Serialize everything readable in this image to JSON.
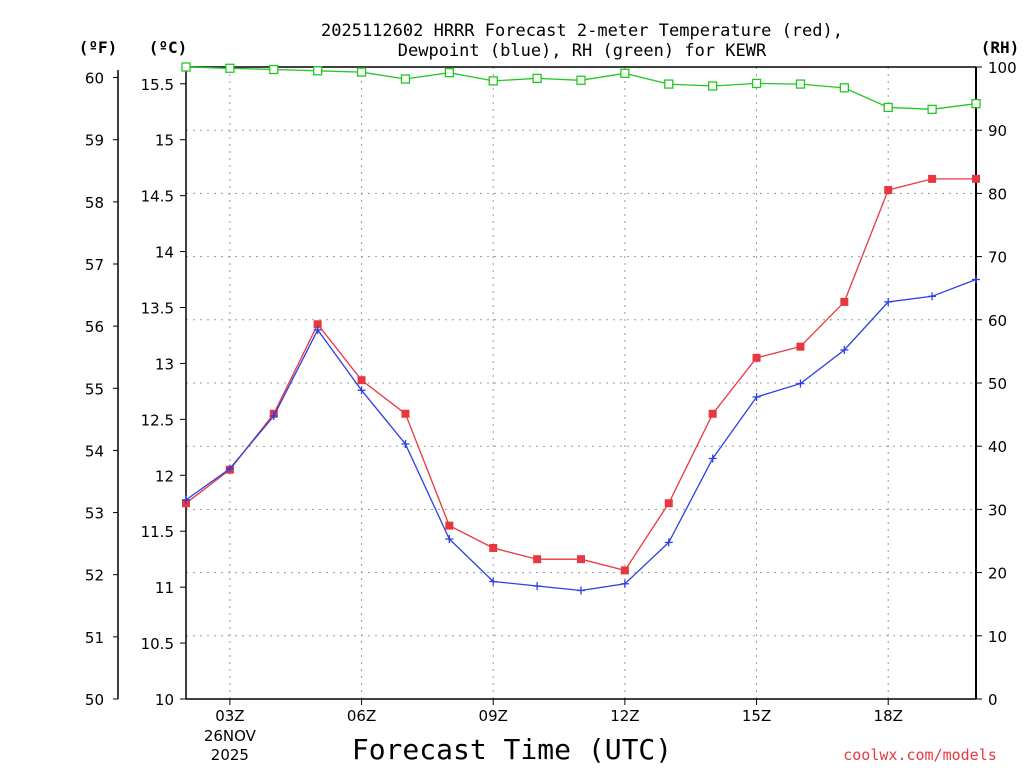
{
  "chart_data": {
    "type": "line",
    "title_line1": "2025112602 HRRR Forecast 2-meter Temperature (red),",
    "title_line2": "Dewpoint (blue), RH (green) for KEWR",
    "xlabel": "Forecast Time (UTC)",
    "credit": "coolwx.com/models",
    "left_outer_unit": "(ºF)",
    "left_inner_unit": "(ºC)",
    "right_unit": "(RH)",
    "x": [
      2,
      3,
      4,
      5,
      6,
      7,
      8,
      9,
      10,
      11,
      12,
      13,
      14,
      15,
      16,
      17,
      18,
      19,
      20
    ],
    "xlim": [
      2,
      20
    ],
    "x_ticks": [
      {
        "x": 3,
        "label": "03Z",
        "sub1": "26NOV",
        "sub2": "2025"
      },
      {
        "x": 6,
        "label": "06Z"
      },
      {
        "x": 9,
        "label": "09Z"
      },
      {
        "x": 12,
        "label": "12Z"
      },
      {
        "x": 15,
        "label": "15Z"
      },
      {
        "x": 18,
        "label": "18Z"
      }
    ],
    "ylim_c": [
      10,
      15.65
    ],
    "y_ticks_c": [
      "10",
      "10.5",
      "11",
      "11.5",
      "12",
      "12.5",
      "13",
      "13.5",
      "14",
      "14.5",
      "15",
      "15.5"
    ],
    "y_ticks_f": [
      "50",
      "51",
      "52",
      "53",
      "54",
      "55",
      "56",
      "57",
      "58",
      "59",
      "60"
    ],
    "ylim_rh": [
      0,
      100
    ],
    "y_ticks_rh": [
      "0",
      "10",
      "20",
      "30",
      "40",
      "50",
      "60",
      "70",
      "80",
      "90",
      "100"
    ],
    "series": [
      {
        "name": "Temperature",
        "color": "#e8383f",
        "marker": "square",
        "values": [
          11.75,
          12.05,
          12.55,
          13.35,
          12.85,
          12.55,
          11.55,
          11.35,
          11.25,
          11.25,
          11.15,
          11.75,
          12.55,
          13.05,
          13.15,
          13.55,
          14.55,
          14.65,
          14.65
        ]
      },
      {
        "name": "Dewpoint",
        "color": "#2a3fe6",
        "marker": "plus",
        "values": [
          11.78,
          12.06,
          12.53,
          13.3,
          12.76,
          12.28,
          11.43,
          11.05,
          11.01,
          10.97,
          11.03,
          11.4,
          12.15,
          12.7,
          12.82,
          13.12,
          13.55,
          13.6,
          13.75
        ]
      },
      {
        "name": "RH",
        "color": "#22c822",
        "marker": "open-square",
        "values": [
          100,
          99.8,
          99.6,
          99.4,
          99.2,
          98.1,
          99.1,
          97.8,
          98.2,
          97.9,
          99.0,
          97.3,
          97.0,
          97.4,
          97.3,
          96.7,
          93.6,
          93.3,
          94.2
        ]
      }
    ]
  }
}
